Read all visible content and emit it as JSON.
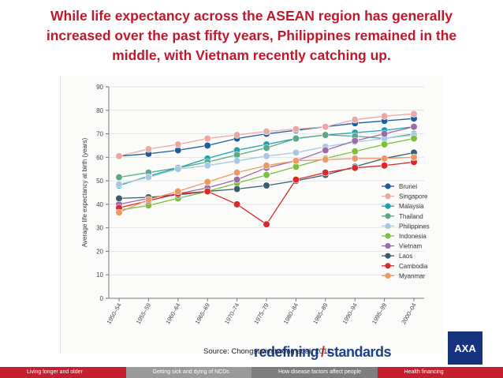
{
  "title_lines": [
    "While life expectancy across the ASEAN region has generally",
    "increased over the past fifty years, Philippines remained in the",
    "middle, with Vietnam recently catching up."
  ],
  "source": "Source: Chongsuvivatwong et al, 2011",
  "brand": {
    "word1": "redefining",
    "word2": "standards",
    "logo": "AXA"
  },
  "footer": [
    "Living longer and older",
    "Getting sick and dying of NCDs",
    "How disease factors affect people",
    "Health financing"
  ],
  "chart_data": {
    "type": "line",
    "title": "",
    "ylabel": "Average life expectancy at birth (years)",
    "xlabel": "",
    "ylim": [
      0,
      90
    ],
    "yticks": [
      0,
      10,
      20,
      30,
      40,
      50,
      60,
      70,
      80,
      90
    ],
    "grid": true,
    "legend_position": "right-inside",
    "categories": [
      "1950–54",
      "1955–59",
      "1960–64",
      "1965–69",
      "1970–74",
      "1975–79",
      "1980–84",
      "1985–89",
      "1990–94",
      "1995–99",
      "2000–04"
    ],
    "series": [
      {
        "name": "Brunei",
        "color": "#1a5c9c",
        "values": [
          60.5,
          61.5,
          63,
          65,
          68,
          70,
          71.5,
          73,
          74.5,
          75.5,
          76.5
        ]
      },
      {
        "name": "Singapore",
        "color": "#e8a8a6",
        "values": [
          60.5,
          63.5,
          65.5,
          68,
          69.5,
          71,
          72,
          73,
          76,
          77.5,
          78.5
        ]
      },
      {
        "name": "Malaysia",
        "color": "#1da0b2",
        "values": [
          48,
          52,
          55.5,
          59.5,
          63,
          65.5,
          68,
          69.5,
          70.5,
          71.5,
          73
        ]
      },
      {
        "name": "Thailand",
        "color": "#5aa88a",
        "values": [
          51.5,
          53.5,
          55.5,
          58,
          61,
          64,
          68,
          69.5,
          69,
          68,
          70
        ]
      },
      {
        "name": "Philippines",
        "color": "#a6c8e0",
        "values": [
          48.5,
          51.5,
          55,
          56.5,
          58.5,
          60.5,
          62,
          64.5,
          66.5,
          68,
          69.5
        ]
      },
      {
        "name": "Indonesia",
        "color": "#7bbf3c",
        "values": [
          37.5,
          39.5,
          42.5,
          45.5,
          49,
          52.5,
          56,
          59.5,
          62.5,
          65.5,
          68
        ]
      },
      {
        "name": "Vietnam",
        "color": "#9a6ba8",
        "values": [
          40,
          42.5,
          44.5,
          47,
          50.5,
          55.5,
          58.5,
          63,
          67,
          70,
          73
        ]
      },
      {
        "name": "Laos",
        "color": "#3f5a6e",
        "values": [
          42.5,
          43,
          44,
          45.5,
          46.5,
          48,
          50,
          52.5,
          56,
          59.5,
          62
        ]
      },
      {
        "name": "Cambodia",
        "color": "#d82a2a",
        "values": [
          38.5,
          41.5,
          44.5,
          45.5,
          40,
          31.5,
          50.5,
          53.5,
          55.5,
          56.5,
          58
        ]
      },
      {
        "name": "Myanmar",
        "color": "#ec9968",
        "values": [
          36.5,
          42,
          45.5,
          49.5,
          53.5,
          56.5,
          58.5,
          59,
          59.5,
          59.5,
          60
        ]
      }
    ]
  }
}
